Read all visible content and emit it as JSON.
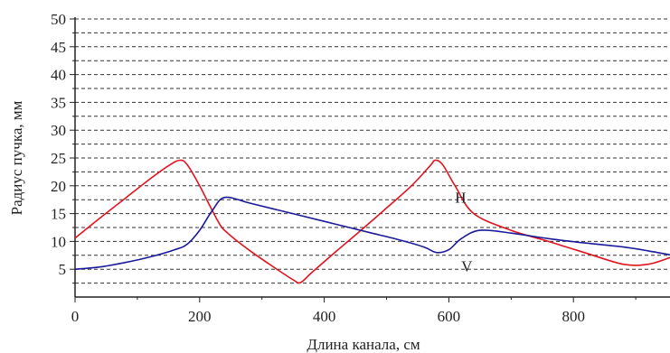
{
  "chart_data": {
    "type": "line",
    "title": "",
    "xlabel": "Длина канала, см",
    "ylabel": "Радиус пучка, мм",
    "xlim": [
      0,
      955
    ],
    "ylim": [
      0,
      50
    ],
    "x_ticks": [
      0,
      200,
      400,
      600,
      800
    ],
    "y_ticks": [
      5,
      10,
      15,
      20,
      25,
      30,
      35,
      40,
      45,
      50
    ],
    "grid": "horizontal dashed",
    "legend": "none",
    "series": [
      {
        "name": "H",
        "color": "#e0141e",
        "x": [
          0,
          40,
          80,
          120,
          150,
          168,
          180,
          200,
          230,
          245,
          280,
          320,
          350,
          362,
          380,
          420,
          460,
          500,
          540,
          570,
          578,
          590,
          610,
          640,
          700,
          760,
          820,
          880,
          920,
          955
        ],
        "y": [
          10.6,
          14.2,
          17.7,
          21.2,
          23.6,
          24.6,
          23.8,
          20.0,
          13.5,
          11.5,
          8.4,
          5.3,
          3.1,
          2.6,
          4.4,
          8.3,
          12.1,
          16.0,
          20.0,
          23.6,
          24.6,
          23.8,
          20.0,
          15.0,
          12.0,
          10.0,
          7.9,
          5.9,
          5.9,
          7.1
        ]
      },
      {
        "name": "V",
        "color": "#1a1a9a",
        "x": [
          0,
          40,
          80,
          120,
          160,
          180,
          200,
          220,
          240,
          280,
          320,
          360,
          400,
          440,
          480,
          520,
          560,
          580,
          600,
          620,
          650,
          700,
          760,
          820,
          880,
          920,
          955
        ],
        "y": [
          5.0,
          5.4,
          6.2,
          7.2,
          8.5,
          9.5,
          12.0,
          15.5,
          17.9,
          16.9,
          15.8,
          14.7,
          13.6,
          12.5,
          11.4,
          10.3,
          9.0,
          8.0,
          8.5,
          10.5,
          12.0,
          11.5,
          10.5,
          9.7,
          9.0,
          8.3,
          7.6
        ]
      }
    ]
  }
}
